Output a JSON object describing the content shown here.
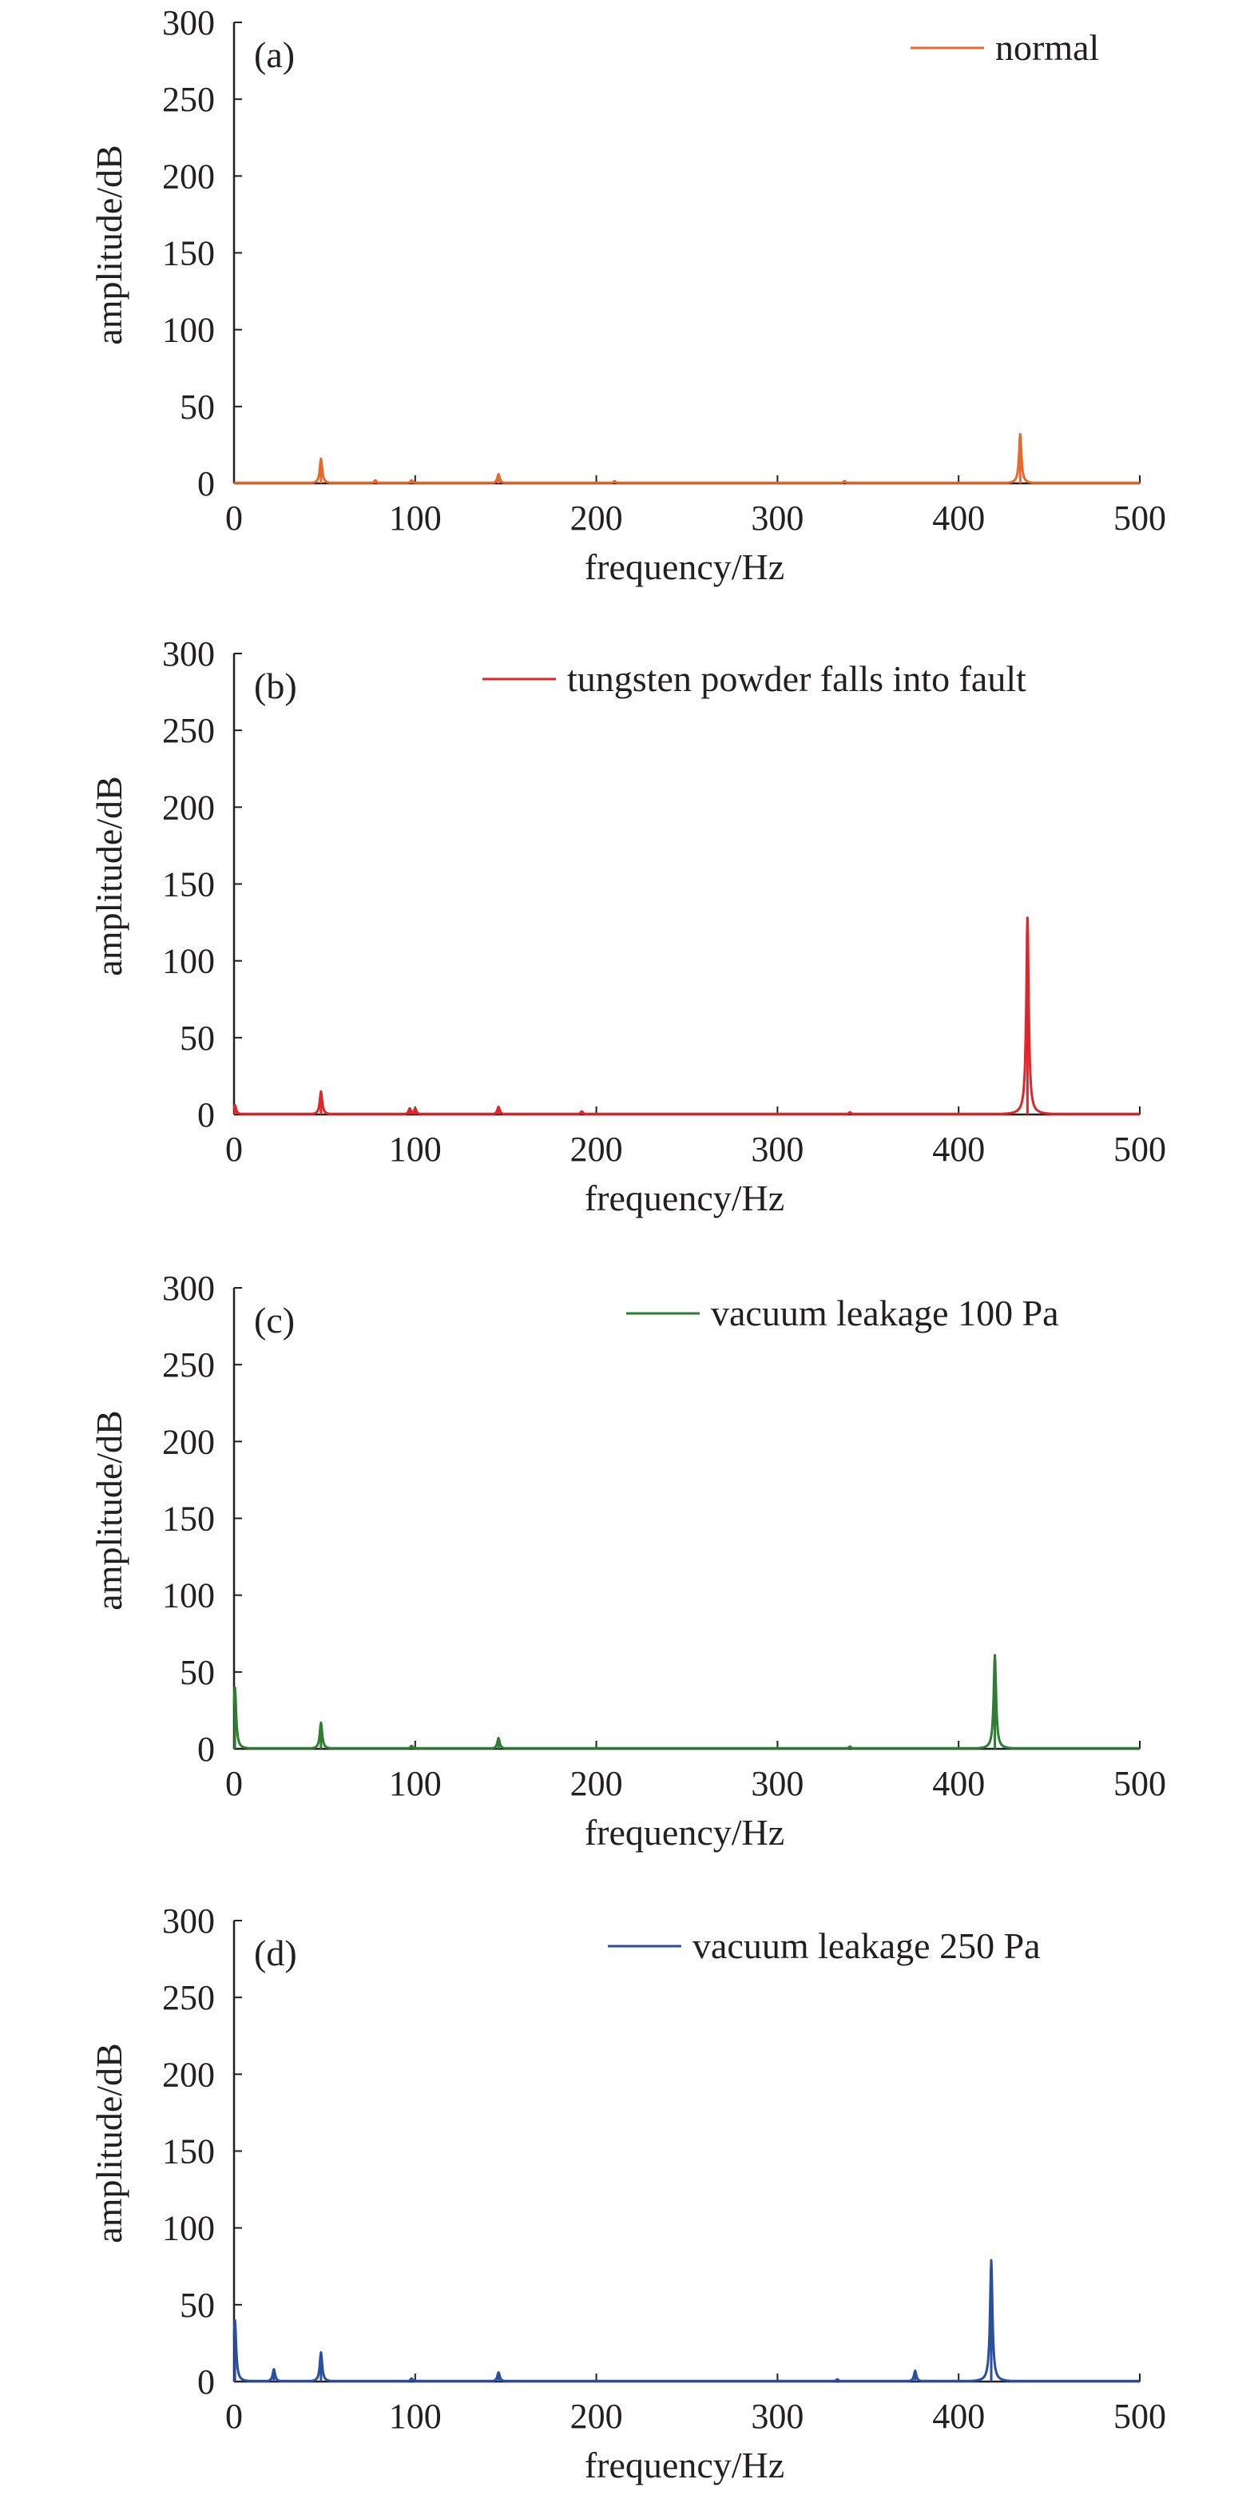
{
  "chart_data": [
    {
      "type": "line",
      "panel_label": "(a)",
      "xlabel": "frequency/Hz",
      "ylabel": "amplitude/dB",
      "xlim": [
        0,
        500
      ],
      "ylim": [
        0,
        300
      ],
      "x_ticks": [
        "0",
        "100",
        "200",
        "300",
        "400",
        "500"
      ],
      "y_ticks": [
        "0",
        "50",
        "100",
        "150",
        "200",
        "250",
        "300"
      ],
      "legend_position": "top-right",
      "grid": false,
      "series": [
        {
          "name": "normal",
          "color": "#e8692a",
          "peaks": [
            {
              "x": 48,
              "y": 16
            },
            {
              "x": 78,
              "y": 2
            },
            {
              "x": 98,
              "y": 2
            },
            {
              "x": 146,
              "y": 6
            },
            {
              "x": 210,
              "y": 1.5
            },
            {
              "x": 337,
              "y": 1.5
            },
            {
              "x": 434,
              "y": 32
            }
          ]
        }
      ]
    },
    {
      "type": "line",
      "panel_label": "(b)",
      "xlabel": "frequency/Hz",
      "ylabel": "amplitude/dB",
      "xlim": [
        0,
        500
      ],
      "ylim": [
        0,
        300
      ],
      "x_ticks": [
        "0",
        "100",
        "200",
        "300",
        "400",
        "500"
      ],
      "y_ticks": [
        "0",
        "50",
        "100",
        "150",
        "200",
        "250",
        "300"
      ],
      "legend_position": "top-right",
      "grid": false,
      "series": [
        {
          "name": "tungsten powder falls into fault",
          "color": "#e0262b",
          "peaks": [
            {
              "x": 0.5,
              "y": 6
            },
            {
              "x": 48,
              "y": 15
            },
            {
              "x": 97,
              "y": 4
            },
            {
              "x": 100,
              "y": 4
            },
            {
              "x": 146,
              "y": 5
            },
            {
              "x": 192,
              "y": 2
            },
            {
              "x": 340,
              "y": 1.5
            },
            {
              "x": 438,
              "y": 128
            }
          ]
        }
      ]
    },
    {
      "type": "line",
      "panel_label": "(c)",
      "xlabel": "frequency/Hz",
      "ylabel": "amplitude/dB",
      "xlim": [
        0,
        500
      ],
      "ylim": [
        0,
        300
      ],
      "x_ticks": [
        "0",
        "100",
        "200",
        "300",
        "400",
        "500"
      ],
      "y_ticks": [
        "0",
        "50",
        "100",
        "150",
        "200",
        "250",
        "300"
      ],
      "legend_position": "top-right",
      "grid": false,
      "series": [
        {
          "name": "vacuum leakage 100 Pa",
          "color": "#2e7d32",
          "peaks": [
            {
              "x": 0.5,
              "y": 40
            },
            {
              "x": 48,
              "y": 17
            },
            {
              "x": 98,
              "y": 2
            },
            {
              "x": 146,
              "y": 7
            },
            {
              "x": 340,
              "y": 1.5
            },
            {
              "x": 420,
              "y": 61
            }
          ]
        }
      ]
    },
    {
      "type": "line",
      "panel_label": "(d)",
      "xlabel": "frequency/Hz",
      "ylabel": "amplitude/dB",
      "xlim": [
        0,
        500
      ],
      "ylim": [
        0,
        300
      ],
      "x_ticks": [
        "0",
        "100",
        "200",
        "300",
        "400",
        "500"
      ],
      "y_ticks": [
        "0",
        "50",
        "100",
        "150",
        "200",
        "250",
        "300"
      ],
      "legend_position": "top-right",
      "grid": false,
      "series": [
        {
          "name": "vacuum leakage 250 Pa",
          "color": "#2a4ea0",
          "peaks": [
            {
              "x": 0.5,
              "y": 40
            },
            {
              "x": 22,
              "y": 8
            },
            {
              "x": 48,
              "y": 19
            },
            {
              "x": 98,
              "y": 2
            },
            {
              "x": 146,
              "y": 6
            },
            {
              "x": 333,
              "y": 1.5
            },
            {
              "x": 376,
              "y": 7
            },
            {
              "x": 418,
              "y": 79
            }
          ]
        }
      ]
    }
  ]
}
